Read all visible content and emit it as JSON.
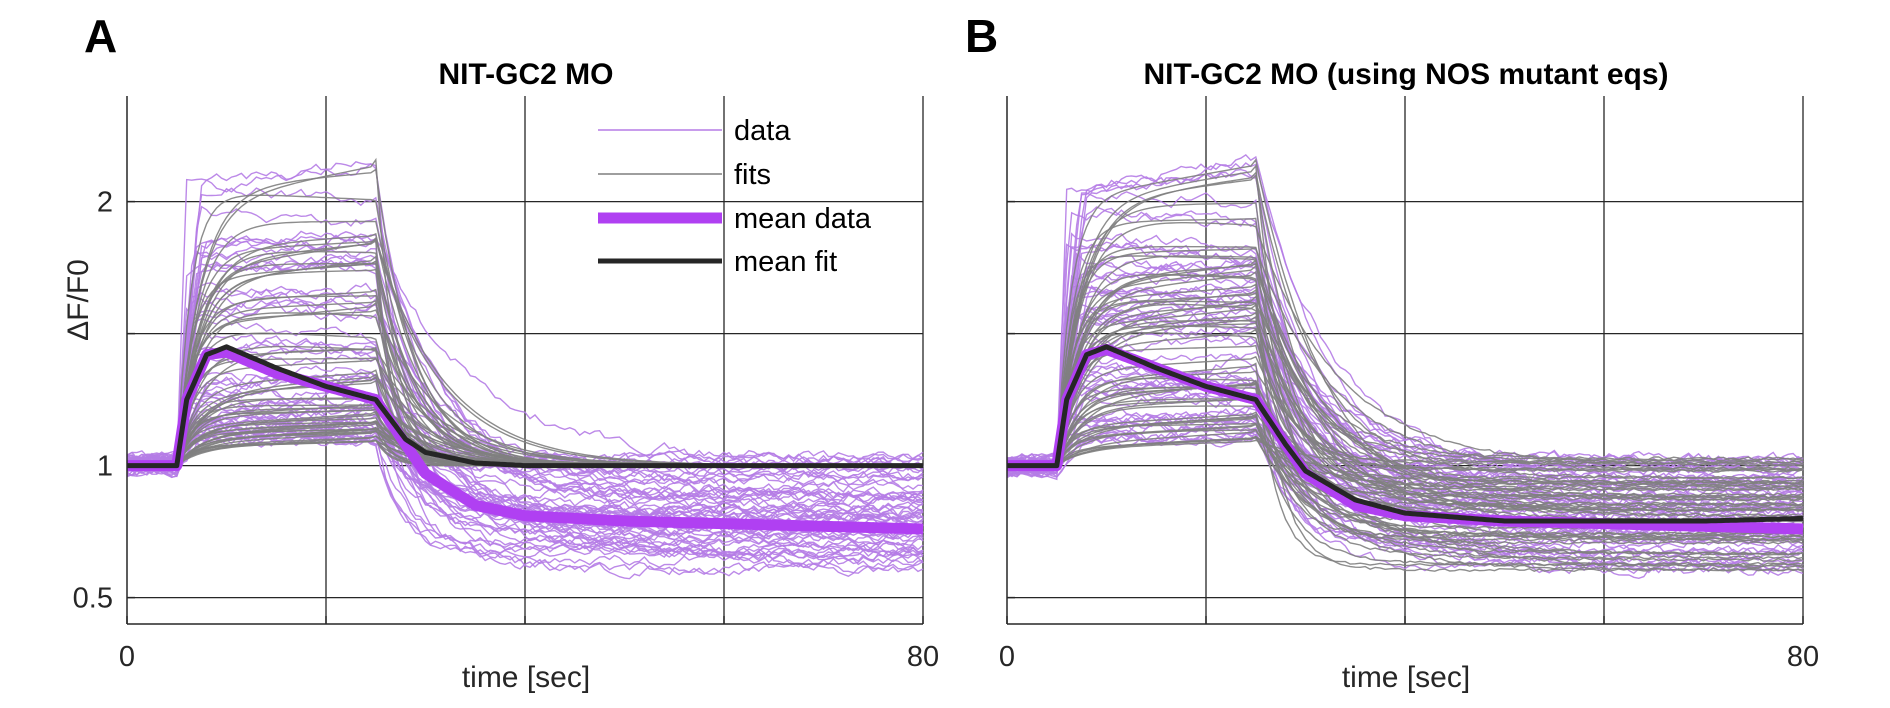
{
  "colors": {
    "data": "#b57ce6",
    "fits": "#7f7f7f",
    "mean_data": "#b040f2",
    "mean_fit": "#262626",
    "grid": "#262626"
  },
  "chart_data": [
    {
      "type": "line",
      "panel_label": "A",
      "title": "NIT-GC2 MO",
      "xlabel": "time [sec]",
      "ylabel": "ΔF/F0",
      "xlim": [
        0,
        80
      ],
      "ylim": [
        0.4,
        2.4
      ],
      "x_tick_values": [
        0,
        20,
        40,
        60,
        80
      ],
      "x_tick_labels": [
        "0",
        "",
        "",
        "",
        "80"
      ],
      "y_tick_values": [
        0.5,
        1,
        1.5,
        2
      ],
      "y_tick_labels": [
        "0.5",
        "1",
        "",
        "2"
      ],
      "grid": true,
      "legend": {
        "placement": "top-right-inside",
        "entries": [
          "data",
          "fits",
          "mean data",
          "mean fit"
        ]
      },
      "stimulus": {
        "on_sec": 5,
        "off_sec": 25
      },
      "series": [
        {
          "name": "mean data",
          "x": [
            0,
            5,
            6,
            8,
            10,
            15,
            20,
            25,
            28,
            30,
            35,
            40,
            50,
            60,
            70,
            80
          ],
          "y": [
            1.0,
            1.0,
            1.25,
            1.42,
            1.43,
            1.35,
            1.3,
            1.25,
            1.08,
            0.97,
            0.85,
            0.81,
            0.79,
            0.78,
            0.77,
            0.76
          ]
        },
        {
          "name": "mean fit",
          "x": [
            0,
            5,
            6,
            8,
            10,
            15,
            20,
            25,
            28,
            30,
            35,
            40,
            50,
            60,
            70,
            80
          ],
          "y": [
            1.0,
            1.0,
            1.25,
            1.42,
            1.45,
            1.37,
            1.3,
            1.25,
            1.1,
            1.05,
            1.01,
            1.0,
            1.0,
            1.0,
            1.0,
            1.0
          ]
        }
      ],
      "individual_traces": {
        "count": 60,
        "data_peak_range": [
          1.1,
          2.1
        ],
        "data_plateau_ratio_range": [
          0.85,
          1.12
        ],
        "data_final_range": [
          0.6,
          1.03
        ],
        "fit_final_value": 1.0
      }
    },
    {
      "type": "line",
      "panel_label": "B",
      "title": "NIT-GC2 MO (using NOS mutant eqs)",
      "xlabel": "time [sec]",
      "ylabel": "",
      "xlim": [
        0,
        80
      ],
      "ylim": [
        0.4,
        2.4
      ],
      "x_tick_values": [
        0,
        20,
        40,
        60,
        80
      ],
      "x_tick_labels": [
        "0",
        "",
        "",
        "",
        "80"
      ],
      "y_tick_values": [
        0.5,
        1,
        1.5,
        2
      ],
      "y_tick_labels": [
        "",
        "",
        "",
        ""
      ],
      "grid": true,
      "stimulus": {
        "on_sec": 5,
        "off_sec": 25
      },
      "series": [
        {
          "name": "mean data",
          "x": [
            0,
            5,
            6,
            8,
            10,
            15,
            20,
            25,
            28,
            30,
            35,
            40,
            50,
            60,
            70,
            80
          ],
          "y": [
            1.0,
            1.0,
            1.25,
            1.42,
            1.44,
            1.37,
            1.3,
            1.25,
            1.08,
            0.97,
            0.85,
            0.81,
            0.79,
            0.78,
            0.77,
            0.76
          ]
        },
        {
          "name": "mean fit",
          "x": [
            0,
            5,
            6,
            8,
            10,
            15,
            20,
            25,
            28,
            30,
            35,
            40,
            50,
            60,
            70,
            80
          ],
          "y": [
            1.0,
            1.0,
            1.25,
            1.42,
            1.45,
            1.37,
            1.3,
            1.25,
            1.08,
            0.98,
            0.87,
            0.82,
            0.79,
            0.79,
            0.79,
            0.8
          ]
        }
      ],
      "individual_traces": {
        "count": 60,
        "data_peak_range": [
          1.1,
          2.1
        ],
        "data_plateau_ratio_range": [
          0.85,
          1.12
        ],
        "data_final_range": [
          0.6,
          1.03
        ],
        "fit_final_value": "follows data"
      }
    }
  ]
}
